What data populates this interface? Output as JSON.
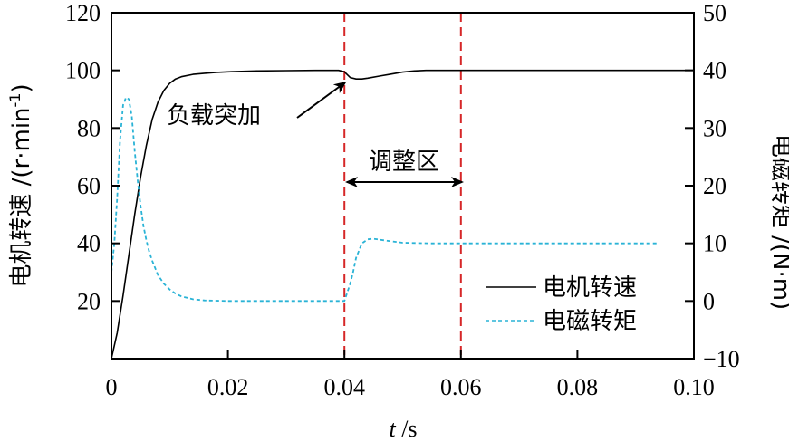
{
  "chart_data": {
    "type": "line",
    "title": "",
    "xlabel_italic": "t",
    "xlabel_unit": " /s",
    "ylabel_left": "电机转速 /(r·min",
    "ylabel_left_sup": "-1",
    "ylabel_left_close": ")",
    "ylabel_right": "电磁转矩 /(N·m)",
    "xlim": [
      0,
      0.1
    ],
    "ylim_left": [
      0,
      120
    ],
    "ylim_right": [
      -10,
      50
    ],
    "x_ticks": [
      0,
      0.02,
      0.04,
      0.06,
      0.08,
      0.1
    ],
    "x_tick_labels": [
      "0",
      "0.02",
      "0.04",
      "0.06",
      "0.08",
      "0.10"
    ],
    "y_left_ticks": [
      20,
      40,
      60,
      80,
      100,
      120
    ],
    "y_left_tick_labels": [
      "20",
      "40",
      "60",
      "80",
      "100",
      "120"
    ],
    "y_right_ticks": [
      -10,
      0,
      10,
      20,
      30,
      40,
      50
    ],
    "y_right_tick_labels": [
      "−10",
      "0",
      "10",
      "20",
      "30",
      "40",
      "50"
    ],
    "vlines": [
      0.04,
      0.06
    ],
    "vline_color": "#d62728",
    "annotations": {
      "load_text": "负载突加",
      "region_text": "调整区"
    },
    "series": [
      {
        "name": "电机转速",
        "axis": "left",
        "color": "#000000",
        "style": "solid",
        "x": [
          0,
          0.001,
          0.002,
          0.003,
          0.004,
          0.005,
          0.006,
          0.007,
          0.008,
          0.009,
          0.01,
          0.011,
          0.012,
          0.014,
          0.016,
          0.018,
          0.02,
          0.025,
          0.03,
          0.035,
          0.039,
          0.04,
          0.041,
          0.042,
          0.043,
          0.044,
          0.046,
          0.048,
          0.05,
          0.052,
          0.054,
          0.06,
          0.07,
          0.08,
          0.09,
          0.1
        ],
        "values": [
          0,
          9,
          22,
          36,
          50,
          63,
          74,
          83,
          89,
          93,
          95.5,
          97,
          97.8,
          98.6,
          99,
          99.3,
          99.5,
          99.8,
          99.9,
          100,
          100,
          99.5,
          97.5,
          97,
          97,
          97.3,
          98,
          98.7,
          99.4,
          99.8,
          100,
          100,
          100,
          100,
          100,
          100
        ]
      },
      {
        "name": "电磁转矩",
        "axis": "right",
        "color": "#2ab3d6",
        "style": "dashed",
        "x": [
          0,
          0.0005,
          0.001,
          0.0015,
          0.002,
          0.0025,
          0.003,
          0.0035,
          0.004,
          0.0045,
          0.005,
          0.0055,
          0.006,
          0.0065,
          0.007,
          0.008,
          0.009,
          0.01,
          0.011,
          0.012,
          0.014,
          0.016,
          0.02,
          0.03,
          0.04,
          0.041,
          0.0415,
          0.042,
          0.043,
          0.044,
          0.045,
          0.047,
          0.05,
          0.055,
          0.06,
          0.07,
          0.08,
          0.094
        ],
        "values": [
          5,
          10,
          18,
          28,
          34,
          35.3,
          35,
          32,
          26,
          21,
          16.5,
          13,
          10.5,
          8.5,
          7,
          4.5,
          3,
          2,
          1.3,
          0.8,
          0.3,
          0.1,
          0,
          0,
          0,
          3,
          5,
          7.5,
          10,
          10.7,
          10.8,
          10.5,
          10.1,
          10,
          10,
          10,
          10,
          10
        ]
      }
    ],
    "legend": {
      "position": "bottom-right",
      "entries": [
        "电机转速",
        "电磁转矩"
      ]
    }
  }
}
